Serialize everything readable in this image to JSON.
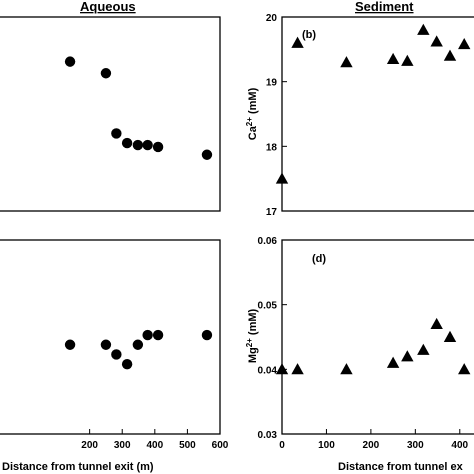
{
  "headers": {
    "left": "Aqueous",
    "right": "Sediment"
  },
  "chart_data": [
    {
      "id": "a",
      "type": "scatter",
      "marker": "circle",
      "panel_label": "",
      "ylabel": "",
      "xlim": [
        0,
        600
      ],
      "ylim": [
        0,
        1
      ],
      "xticks": [],
      "yticks": [],
      "points": [
        {
          "x": 140,
          "y": 0.77
        },
        {
          "x": 250,
          "y": 0.71
        },
        {
          "x": 282,
          "y": 0.4
        },
        {
          "x": 315,
          "y": 0.35
        },
        {
          "x": 348,
          "y": 0.34
        },
        {
          "x": 378,
          "y": 0.34
        },
        {
          "x": 410,
          "y": 0.33
        },
        {
          "x": 560,
          "y": 0.29
        }
      ]
    },
    {
      "id": "b",
      "type": "scatter",
      "marker": "triangle",
      "panel_label": "(b)",
      "ylabel": "Ca2+ (mM)",
      "xlim": [
        0,
        450
      ],
      "ylim": [
        17,
        20
      ],
      "xticks": [],
      "yticks": [
        17,
        18,
        19,
        20
      ],
      "points": [
        {
          "x": 0,
          "y": 17.5
        },
        {
          "x": 35,
          "y": 19.6
        },
        {
          "x": 145,
          "y": 19.3
        },
        {
          "x": 250,
          "y": 19.35
        },
        {
          "x": 282,
          "y": 19.32
        },
        {
          "x": 318,
          "y": 19.8
        },
        {
          "x": 348,
          "y": 19.62
        },
        {
          "x": 378,
          "y": 19.4
        },
        {
          "x": 410,
          "y": 19.58
        }
      ]
    },
    {
      "id": "c",
      "type": "scatter",
      "marker": "circle",
      "panel_label": "",
      "ylabel": "",
      "xlim": [
        0,
        600
      ],
      "ylim": [
        0,
        1
      ],
      "xticks": [
        200,
        300,
        400,
        500,
        600
      ],
      "yticks": [],
      "xlabel": "Distance from tunnel exit (m)",
      "points": [
        {
          "x": 140,
          "y": 0.46
        },
        {
          "x": 250,
          "y": 0.46
        },
        {
          "x": 282,
          "y": 0.41
        },
        {
          "x": 315,
          "y": 0.36
        },
        {
          "x": 348,
          "y": 0.46
        },
        {
          "x": 378,
          "y": 0.51
        },
        {
          "x": 410,
          "y": 0.51
        },
        {
          "x": 560,
          "y": 0.51
        }
      ]
    },
    {
      "id": "d",
      "type": "scatter",
      "marker": "triangle",
      "panel_label": "(d)",
      "ylabel": "Mg2+ (mM)",
      "xlim": [
        0,
        450
      ],
      "ylim": [
        0.03,
        0.06
      ],
      "xticks": [
        0,
        100,
        200,
        300,
        400
      ],
      "yticks": [
        0.03,
        0.04,
        0.05,
        0.06
      ],
      "xlabel": "Distance from tunnel ex",
      "points": [
        {
          "x": 0,
          "y": 0.04
        },
        {
          "x": 35,
          "y": 0.04
        },
        {
          "x": 145,
          "y": 0.04
        },
        {
          "x": 250,
          "y": 0.041
        },
        {
          "x": 282,
          "y": 0.042
        },
        {
          "x": 318,
          "y": 0.043
        },
        {
          "x": 348,
          "y": 0.047
        },
        {
          "x": 378,
          "y": 0.045
        },
        {
          "x": 410,
          "y": 0.04
        }
      ]
    }
  ]
}
